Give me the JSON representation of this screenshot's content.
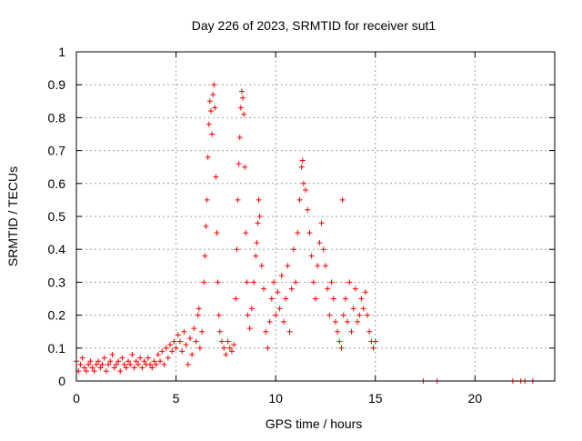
{
  "chart_data": {
    "type": "scatter",
    "title": "Day 226 of 2023, SRMTID for receiver sut1",
    "xlabel": "GPS time / hours",
    "ylabel": "SRMTID / TECUs",
    "xlim": [
      0,
      24
    ],
    "ylim": [
      0,
      1
    ],
    "x_ticks": [
      0,
      5,
      10,
      15,
      20
    ],
    "x_tick_labels": [
      "0",
      "5",
      "10",
      "15",
      "20"
    ],
    "y_ticks": [
      0,
      0.1,
      0.2,
      0.3,
      0.4,
      0.5,
      0.6,
      0.7,
      0.8,
      0.9,
      1
    ],
    "y_tick_labels": [
      "0",
      "0.1",
      "0.2",
      "0.3",
      "0.4",
      "0.5",
      "0.6",
      "0.7",
      "0.8",
      "0.9",
      "1"
    ],
    "grid": true,
    "marker": "+",
    "color": "#ff0000",
    "series": [
      {
        "name": "sut1",
        "points": [
          [
            0.0,
            0.06
          ],
          [
            0.1,
            0.03
          ],
          [
            0.2,
            0.05
          ],
          [
            0.3,
            0.07
          ],
          [
            0.4,
            0.04
          ],
          [
            0.5,
            0.03
          ],
          [
            0.6,
            0.05
          ],
          [
            0.7,
            0.06
          ],
          [
            0.8,
            0.04
          ],
          [
            0.9,
            0.03
          ],
          [
            1.0,
            0.05
          ],
          [
            1.1,
            0.06
          ],
          [
            1.2,
            0.04
          ],
          [
            1.3,
            0.05
          ],
          [
            1.4,
            0.07
          ],
          [
            1.5,
            0.03
          ],
          [
            1.6,
            0.05
          ],
          [
            1.7,
            0.06
          ],
          [
            1.8,
            0.08
          ],
          [
            1.9,
            0.04
          ],
          [
            2.0,
            0.05
          ],
          [
            2.1,
            0.06
          ],
          [
            2.2,
            0.03
          ],
          [
            2.3,
            0.07
          ],
          [
            2.4,
            0.05
          ],
          [
            2.5,
            0.04
          ],
          [
            2.6,
            0.06
          ],
          [
            2.7,
            0.05
          ],
          [
            2.8,
            0.08
          ],
          [
            2.9,
            0.04
          ],
          [
            3.0,
            0.06
          ],
          [
            3.1,
            0.05
          ],
          [
            3.2,
            0.07
          ],
          [
            3.3,
            0.04
          ],
          [
            3.4,
            0.06
          ],
          [
            3.5,
            0.05
          ],
          [
            3.6,
            0.07
          ],
          [
            3.7,
            0.05
          ],
          [
            3.8,
            0.04
          ],
          [
            3.9,
            0.06
          ],
          [
            4.0,
            0.05
          ],
          [
            4.1,
            0.08
          ],
          [
            4.2,
            0.06
          ],
          [
            4.3,
            0.09
          ],
          [
            4.4,
            0.05
          ],
          [
            4.5,
            0.1
          ],
          [
            4.6,
            0.07
          ],
          [
            4.7,
            0.11
          ],
          [
            4.8,
            0.09
          ],
          [
            4.9,
            0.12
          ],
          [
            5.0,
            0.1
          ],
          [
            5.1,
            0.14
          ],
          [
            5.2,
            0.12
          ],
          [
            5.3,
            0.09
          ],
          [
            5.4,
            0.15
          ],
          [
            5.5,
            0.11
          ],
          [
            5.6,
            0.05
          ],
          [
            5.7,
            0.13
          ],
          [
            5.8,
            0.08
          ],
          [
            5.9,
            0.16
          ],
          [
            6.0,
            0.12
          ],
          [
            6.1,
            0.2
          ],
          [
            6.15,
            0.22
          ],
          [
            6.2,
            0.1
          ],
          [
            6.3,
            0.15
          ],
          [
            6.4,
            0.3
          ],
          [
            6.45,
            0.38
          ],
          [
            6.5,
            0.47
          ],
          [
            6.55,
            0.55
          ],
          [
            6.6,
            0.68
          ],
          [
            6.65,
            0.78
          ],
          [
            6.7,
            0.85
          ],
          [
            6.75,
            0.82
          ],
          [
            6.8,
            0.75
          ],
          [
            6.85,
            0.87
          ],
          [
            6.9,
            0.9
          ],
          [
            6.95,
            0.83
          ],
          [
            7.0,
            0.62
          ],
          [
            7.05,
            0.45
          ],
          [
            7.1,
            0.3
          ],
          [
            7.15,
            0.2
          ],
          [
            7.2,
            0.15
          ],
          [
            7.3,
            0.12
          ],
          [
            7.4,
            0.1
          ],
          [
            7.5,
            0.08
          ],
          [
            7.6,
            0.12
          ],
          [
            7.7,
            0.1
          ],
          [
            7.8,
            0.09
          ],
          [
            7.9,
            0.11
          ],
          [
            8.0,
            0.25
          ],
          [
            8.05,
            0.4
          ],
          [
            8.1,
            0.55
          ],
          [
            8.15,
            0.66
          ],
          [
            8.2,
            0.74
          ],
          [
            8.25,
            0.83
          ],
          [
            8.3,
            0.88
          ],
          [
            8.35,
            0.86
          ],
          [
            8.4,
            0.81
          ],
          [
            8.45,
            0.65
          ],
          [
            8.5,
            0.45
          ],
          [
            8.55,
            0.3
          ],
          [
            8.6,
            0.2
          ],
          [
            8.7,
            0.16
          ],
          [
            8.8,
            0.22
          ],
          [
            8.9,
            0.3
          ],
          [
            9.0,
            0.38
          ],
          [
            9.05,
            0.42
          ],
          [
            9.1,
            0.48
          ],
          [
            9.15,
            0.55
          ],
          [
            9.2,
            0.5
          ],
          [
            9.3,
            0.35
          ],
          [
            9.4,
            0.28
          ],
          [
            9.5,
            0.15
          ],
          [
            9.6,
            0.1
          ],
          [
            9.7,
            0.18
          ],
          [
            9.8,
            0.25
          ],
          [
            9.9,
            0.3
          ],
          [
            10.0,
            0.2
          ],
          [
            10.1,
            0.27
          ],
          [
            10.2,
            0.22
          ],
          [
            10.3,
            0.32
          ],
          [
            10.4,
            0.18
          ],
          [
            10.5,
            0.25
          ],
          [
            10.6,
            0.35
          ],
          [
            10.7,
            0.15
          ],
          [
            10.8,
            0.28
          ],
          [
            10.9,
            0.4
          ],
          [
            11.0,
            0.3
          ],
          [
            11.1,
            0.45
          ],
          [
            11.2,
            0.55
          ],
          [
            11.3,
            0.65
          ],
          [
            11.35,
            0.67
          ],
          [
            11.4,
            0.6
          ],
          [
            11.5,
            0.58
          ],
          [
            11.6,
            0.52
          ],
          [
            11.7,
            0.45
          ],
          [
            11.8,
            0.38
          ],
          [
            11.9,
            0.3
          ],
          [
            12.0,
            0.25
          ],
          [
            12.1,
            0.35
          ],
          [
            12.2,
            0.42
          ],
          [
            12.3,
            0.48
          ],
          [
            12.4,
            0.4
          ],
          [
            12.5,
            0.35
          ],
          [
            12.6,
            0.28
          ],
          [
            12.7,
            0.2
          ],
          [
            12.8,
            0.3
          ],
          [
            12.9,
            0.25
          ],
          [
            13.0,
            0.18
          ],
          [
            13.1,
            0.15
          ],
          [
            13.2,
            0.12
          ],
          [
            13.3,
            0.1
          ],
          [
            13.35,
            0.55
          ],
          [
            13.4,
            0.2
          ],
          [
            13.5,
            0.25
          ],
          [
            13.6,
            0.18
          ],
          [
            13.7,
            0.3
          ],
          [
            13.8,
            0.15
          ],
          [
            13.9,
            0.22
          ],
          [
            14.0,
            0.28
          ],
          [
            14.1,
            0.18
          ],
          [
            14.2,
            0.2
          ],
          [
            14.3,
            0.25
          ],
          [
            14.4,
            0.22
          ],
          [
            14.5,
            0.27
          ],
          [
            14.6,
            0.2
          ],
          [
            14.7,
            0.15
          ],
          [
            14.8,
            0.12
          ],
          [
            14.9,
            0.1
          ],
          [
            15.0,
            0.12
          ],
          [
            17.4,
            0.0
          ],
          [
            18.1,
            0.0
          ],
          [
            21.9,
            0.0
          ],
          [
            22.3,
            0.0
          ],
          [
            22.5,
            0.0
          ],
          [
            22.9,
            0.0
          ]
        ]
      }
    ]
  }
}
